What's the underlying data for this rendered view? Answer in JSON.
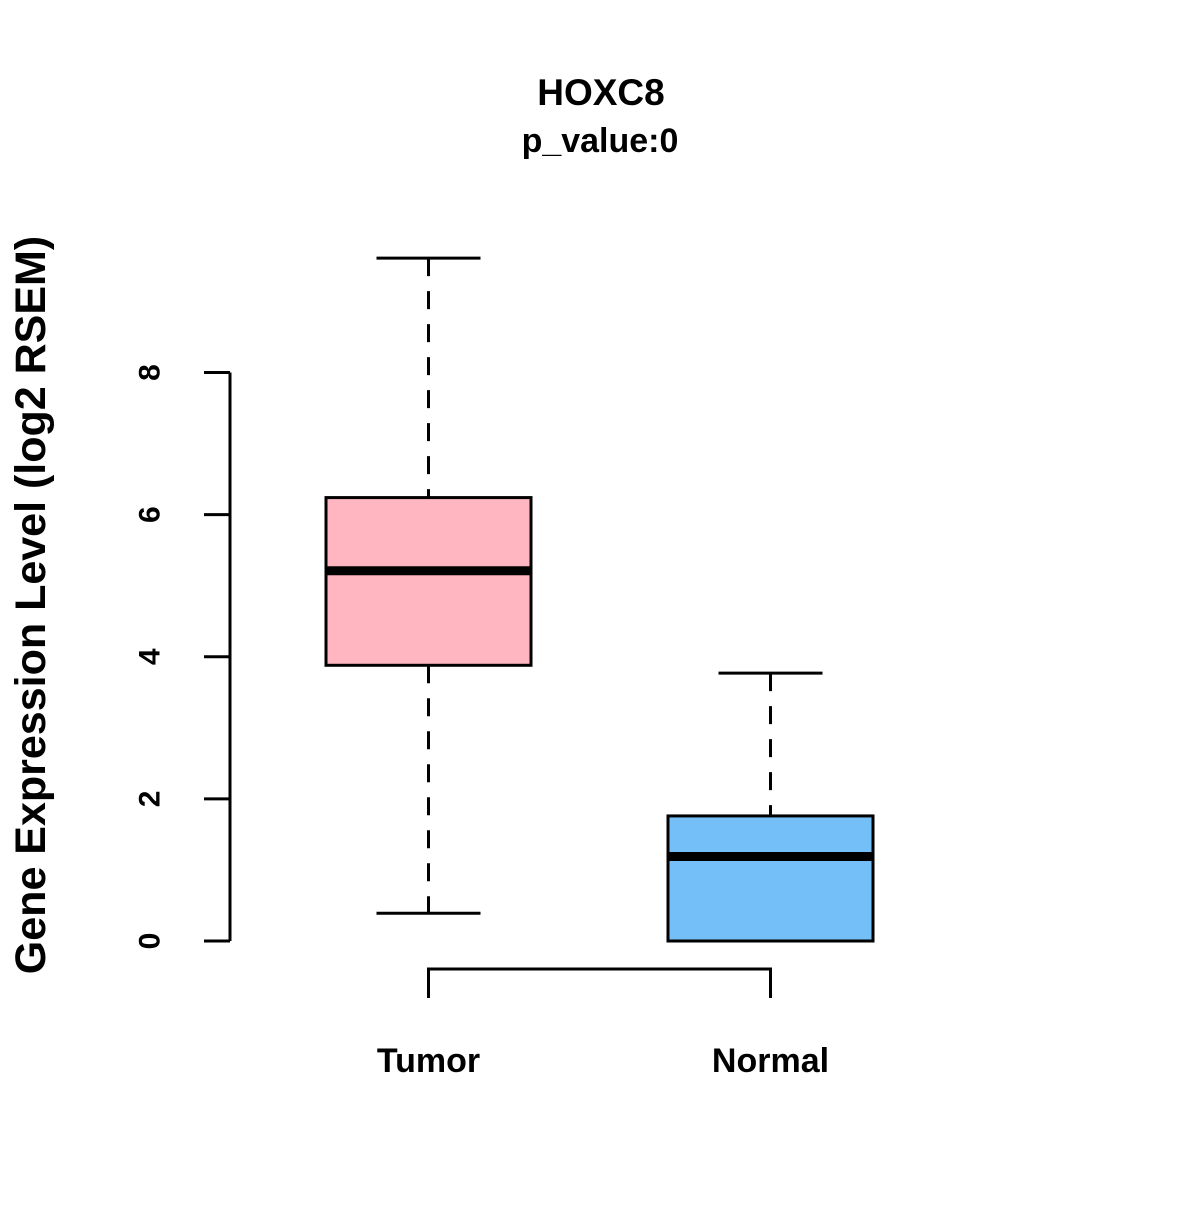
{
  "figure": {
    "background": "#ffffff"
  },
  "chart_data": {
    "type": "boxplot",
    "title": "HOXC8",
    "subtitle": "p_value:0",
    "ylabel": "Gene Expression Level (log2 RSEM)",
    "xlabel": "",
    "categories": [
      "Tumor",
      "Normal"
    ],
    "ylim": [
      0,
      8
    ],
    "yticks": [
      0,
      2,
      4,
      6,
      8
    ],
    "grid": false,
    "legend": "none",
    "whisker_style": "dashed",
    "comparison_bracket": true,
    "series": [
      {
        "name": "Tumor",
        "color": "#FFB6C1",
        "stats": {
          "min": 0.39,
          "q1": 3.88,
          "median": 5.21,
          "q3": 6.24,
          "max": 9.61
        }
      },
      {
        "name": "Normal",
        "color": "#74BFF7",
        "stats": {
          "min": 0.0,
          "q1": 0.0,
          "median": 1.19,
          "q3": 1.76,
          "max": 3.77
        }
      }
    ],
    "line_color": "#000000"
  }
}
